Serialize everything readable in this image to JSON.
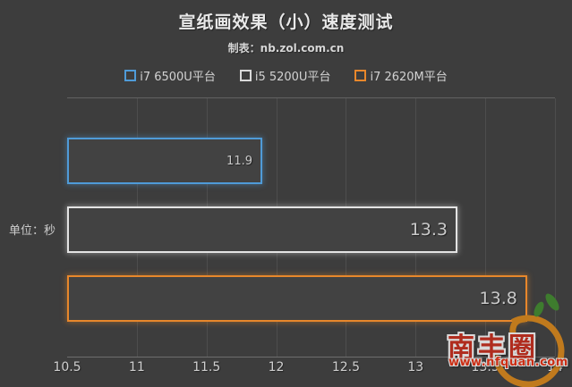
{
  "chart_data": {
    "type": "bar",
    "orientation": "horizontal",
    "title": "宣纸画效果（小）速度测试",
    "subtitle": "制表：nb.zol.com.cn",
    "unit_label": "单位：秒",
    "categories": [
      "i7 6500U平台",
      "i5 5200U平台",
      "i7 2620M平台"
    ],
    "values": [
      11.9,
      13.3,
      13.8
    ],
    "value_labels": [
      "11.9",
      "13.3",
      "13.8"
    ],
    "bar_colors": [
      "#4f9bd8",
      "#e3e3e3",
      "#e8872b"
    ],
    "xlim": [
      10.5,
      14
    ],
    "xticks": [
      10.5,
      11,
      11.5,
      12,
      12.5,
      13,
      13.5,
      14
    ],
    "xtick_labels": [
      "10.5",
      "11",
      "11.5",
      "12",
      "12.5",
      "13",
      "13.5",
      "14"
    ],
    "grid": true,
    "legend_position": "top",
    "background_color": "#3d3d3d",
    "gridline_color": "#4d4d4d"
  },
  "legend": {
    "items": [
      {
        "label": "i7 6500U平台",
        "color": "#4f9bd8"
      },
      {
        "label": "i5 5200U平台",
        "color": "#d9d9d9"
      },
      {
        "label": "i7 2620M平台",
        "color": "#e8872b"
      }
    ]
  },
  "watermark": {
    "name": "南丰圈",
    "url": "www.nfquan.com",
    "ring_color": "#c07a1d",
    "leaf_color": "#3e7c2e"
  }
}
